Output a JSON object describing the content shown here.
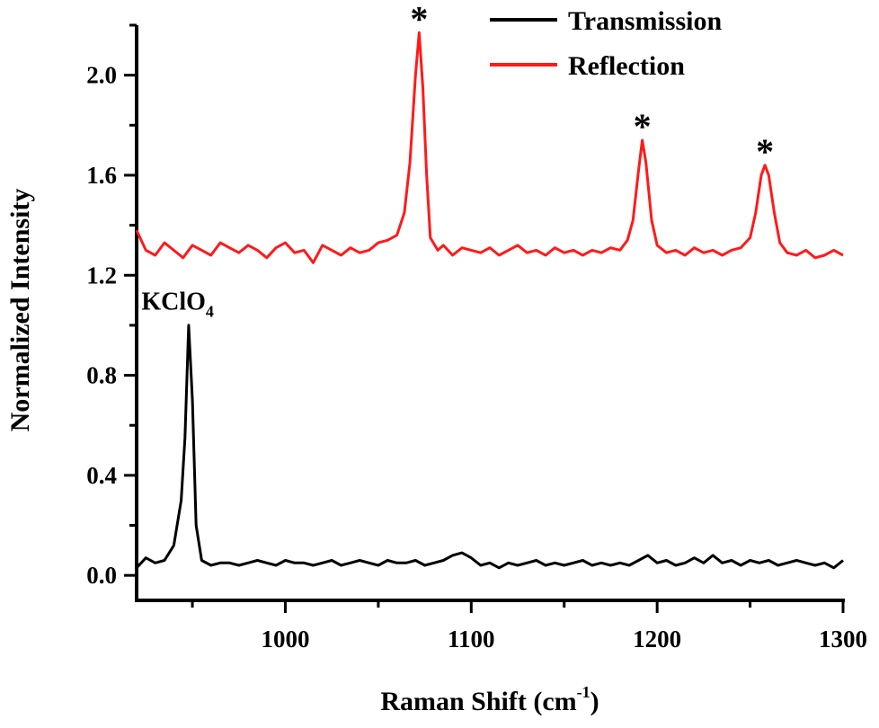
{
  "chart_data": {
    "type": "line",
    "title": "",
    "xlabel": "Raman Shift (cm",
    "xlabel_sup": "-1",
    "xlabel_close": ")",
    "ylabel": "Normalized Intensity",
    "xlim": [
      920,
      1300
    ],
    "ylim": [
      -0.1,
      2.2
    ],
    "xticks": [
      1000,
      1100,
      1200,
      1300
    ],
    "xtick_labels": [
      "1000",
      "1100",
      "1200",
      "1300"
    ],
    "xminor": [
      950,
      1050,
      1150,
      1250
    ],
    "yticks": [
      0.0,
      0.4,
      0.8,
      1.2,
      1.6,
      2.0
    ],
    "ytick_labels": [
      "0.0",
      "0.4",
      "0.8",
      "1.2",
      "1.6",
      "2.0"
    ],
    "yminor": [
      0.2,
      0.6,
      1.0,
      1.4,
      1.8,
      2.2
    ],
    "grid": false,
    "legend_placement": "top-right",
    "series": [
      {
        "name": "Transmission",
        "color": "#000000",
        "x": [
          920,
          925,
          930,
          935,
          940,
          944,
          946,
          948,
          950,
          952,
          955,
          960,
          965,
          970,
          975,
          980,
          985,
          990,
          995,
          1000,
          1005,
          1010,
          1015,
          1020,
          1025,
          1030,
          1035,
          1040,
          1045,
          1050,
          1055,
          1060,
          1065,
          1070,
          1075,
          1080,
          1085,
          1090,
          1095,
          1100,
          1105,
          1110,
          1115,
          1120,
          1125,
          1130,
          1135,
          1140,
          1145,
          1150,
          1155,
          1160,
          1165,
          1170,
          1175,
          1180,
          1185,
          1190,
          1195,
          1200,
          1205,
          1210,
          1215,
          1220,
          1225,
          1230,
          1235,
          1240,
          1245,
          1250,
          1255,
          1260,
          1265,
          1270,
          1275,
          1280,
          1285,
          1290,
          1295,
          1300
        ],
        "y": [
          0.03,
          0.07,
          0.05,
          0.06,
          0.12,
          0.3,
          0.55,
          1.0,
          0.7,
          0.2,
          0.06,
          0.04,
          0.05,
          0.05,
          0.04,
          0.05,
          0.06,
          0.05,
          0.04,
          0.06,
          0.05,
          0.05,
          0.04,
          0.05,
          0.06,
          0.04,
          0.05,
          0.06,
          0.05,
          0.04,
          0.06,
          0.05,
          0.05,
          0.06,
          0.04,
          0.05,
          0.06,
          0.08,
          0.09,
          0.07,
          0.04,
          0.05,
          0.03,
          0.05,
          0.04,
          0.05,
          0.06,
          0.04,
          0.05,
          0.04,
          0.05,
          0.06,
          0.04,
          0.05,
          0.04,
          0.05,
          0.04,
          0.06,
          0.08,
          0.05,
          0.06,
          0.04,
          0.05,
          0.07,
          0.05,
          0.08,
          0.05,
          0.06,
          0.04,
          0.06,
          0.05,
          0.06,
          0.04,
          0.05,
          0.06,
          0.05,
          0.04,
          0.05,
          0.03,
          0.06
        ]
      },
      {
        "name": "Reflection",
        "color": "#ff1a1a",
        "x": [
          920,
          925,
          930,
          935,
          940,
          945,
          950,
          955,
          960,
          965,
          970,
          975,
          980,
          985,
          990,
          995,
          1000,
          1005,
          1010,
          1015,
          1020,
          1025,
          1030,
          1035,
          1040,
          1045,
          1050,
          1055,
          1060,
          1064,
          1067,
          1070,
          1072,
          1074,
          1076,
          1078,
          1082,
          1085,
          1090,
          1095,
          1100,
          1105,
          1110,
          1115,
          1120,
          1125,
          1130,
          1135,
          1140,
          1145,
          1150,
          1155,
          1160,
          1165,
          1170,
          1175,
          1180,
          1184,
          1187,
          1190,
          1192,
          1194,
          1197,
          1200,
          1205,
          1210,
          1215,
          1220,
          1225,
          1230,
          1235,
          1240,
          1245,
          1250,
          1253,
          1256,
          1258,
          1260,
          1263,
          1266,
          1270,
          1275,
          1280,
          1285,
          1290,
          1295,
          1300
        ],
        "y": [
          1.38,
          1.3,
          1.28,
          1.33,
          1.3,
          1.27,
          1.32,
          1.3,
          1.28,
          1.33,
          1.31,
          1.29,
          1.32,
          1.3,
          1.27,
          1.31,
          1.33,
          1.29,
          1.3,
          1.25,
          1.32,
          1.3,
          1.28,
          1.31,
          1.29,
          1.3,
          1.33,
          1.34,
          1.36,
          1.45,
          1.65,
          2.0,
          2.17,
          1.95,
          1.6,
          1.35,
          1.3,
          1.32,
          1.28,
          1.31,
          1.3,
          1.29,
          1.31,
          1.28,
          1.3,
          1.32,
          1.29,
          1.3,
          1.28,
          1.31,
          1.29,
          1.3,
          1.28,
          1.3,
          1.29,
          1.31,
          1.3,
          1.34,
          1.42,
          1.62,
          1.74,
          1.65,
          1.42,
          1.32,
          1.29,
          1.3,
          1.28,
          1.31,
          1.29,
          1.3,
          1.28,
          1.3,
          1.31,
          1.35,
          1.45,
          1.6,
          1.64,
          1.6,
          1.45,
          1.33,
          1.29,
          1.28,
          1.3,
          1.27,
          1.28,
          1.3,
          1.28
        ]
      }
    ],
    "annotations": [
      {
        "text": "KClO",
        "sub": "4",
        "x": 925,
        "y": 1.02
      },
      {
        "text": "*",
        "x": 1072,
        "y": 2.17
      },
      {
        "text": "*",
        "x": 1192,
        "y": 1.74
      },
      {
        "text": "*",
        "x": 1258,
        "y": 1.64
      }
    ]
  }
}
